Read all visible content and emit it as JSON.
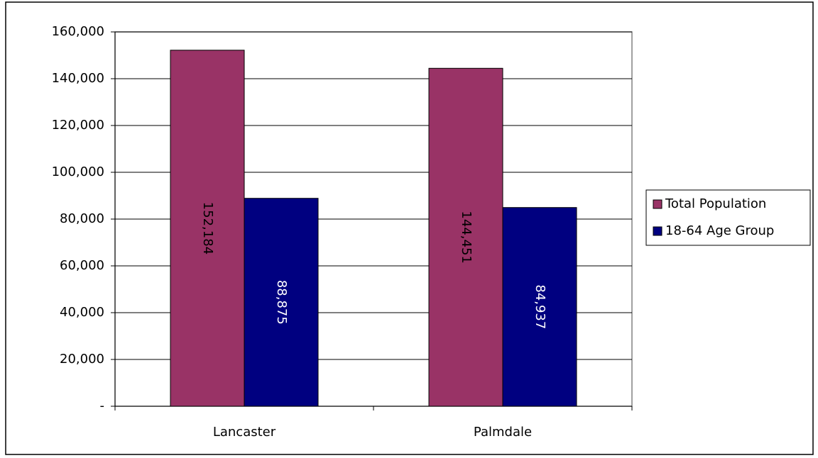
{
  "chart_data": {
    "type": "bar",
    "categories": [
      "Lancaster",
      "Palmdale"
    ],
    "series": [
      {
        "name": "Total Population",
        "color": "#993366",
        "label_color": "#000000",
        "values": [
          152184,
          144451
        ],
        "value_labels": [
          "152,184",
          "144,451"
        ]
      },
      {
        "name": "18-64 Age Group",
        "color": "#000080",
        "label_color": "#ffffff",
        "values": [
          88875,
          84937
        ],
        "value_labels": [
          "88,875",
          "84,937"
        ]
      }
    ],
    "ylim": [
      0,
      160000
    ],
    "yticks": [
      {
        "value": 0,
        "label": "-"
      },
      {
        "value": 20000,
        "label": "20,000"
      },
      {
        "value": 40000,
        "label": "40,000"
      },
      {
        "value": 60000,
        "label": "60,000"
      },
      {
        "value": 80000,
        "label": "80,000"
      },
      {
        "value": 100000,
        "label": "100,000"
      },
      {
        "value": 120000,
        "label": "120,000"
      },
      {
        "value": 140000,
        "label": "140,000"
      },
      {
        "value": 160000,
        "label": "160,000"
      }
    ],
    "grid": true,
    "legend": "right"
  }
}
